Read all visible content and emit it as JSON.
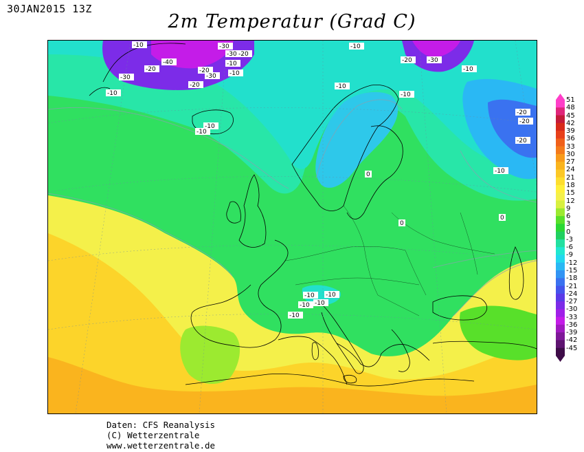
{
  "header": {
    "timestamp": "30JAN2015 13Z",
    "title": "2m Temperatur (Grad C)"
  },
  "footer": {
    "line1": "Daten: CFS Reanalysis",
    "line2": "(C) Wetterzentrale",
    "line3": "www.wetterzentrale.de"
  },
  "legend": {
    "unit": "Grad C",
    "levels": [
      51,
      48,
      45,
      42,
      39,
      36,
      33,
      30,
      27,
      24,
      21,
      18,
      15,
      12,
      9,
      6,
      3,
      0,
      -3,
      -6,
      -9,
      -12,
      -15,
      -18,
      -21,
      -24,
      -27,
      -30,
      -33,
      -36,
      -39,
      -42,
      -45
    ],
    "colors": [
      "#ff3ec8",
      "#e0257a",
      "#c41a3a",
      "#d82a1a",
      "#e8401a",
      "#f0601a",
      "#f47a1a",
      "#f89a1a",
      "#fab41e",
      "#fcc826",
      "#fede2e",
      "#fff03a",
      "#f4f04a",
      "#d8f040",
      "#9cea30",
      "#58e02a",
      "#2ad834",
      "#20d060",
      "#22e0a0",
      "#20e8d0",
      "#22d8ee",
      "#2ab8f4",
      "#3294f4",
      "#3a72f0",
      "#4454ec",
      "#5a3ae8",
      "#7c2ce8",
      "#a020e8",
      "#c41ce8",
      "#a01ac0",
      "#7e1898",
      "#5e1470",
      "#3e0c48"
    ]
  },
  "contour_labels": [
    "-10",
    "-10",
    "-30",
    "-30",
    "-20",
    "-40",
    "-20",
    "-20",
    "-30",
    "-10",
    "-20",
    "-30",
    "-10",
    "-20",
    "-30",
    "-10",
    "-10",
    "-10",
    "-10",
    "-10",
    "-10",
    "0",
    "0",
    "0",
    "-20",
    "-20",
    "-20",
    "-10",
    "-10",
    "-10",
    "-10",
    "-10",
    "-10"
  ],
  "icons": {
    "colorbar_top": "triangle-up",
    "colorbar_bottom": "triangle-down"
  }
}
